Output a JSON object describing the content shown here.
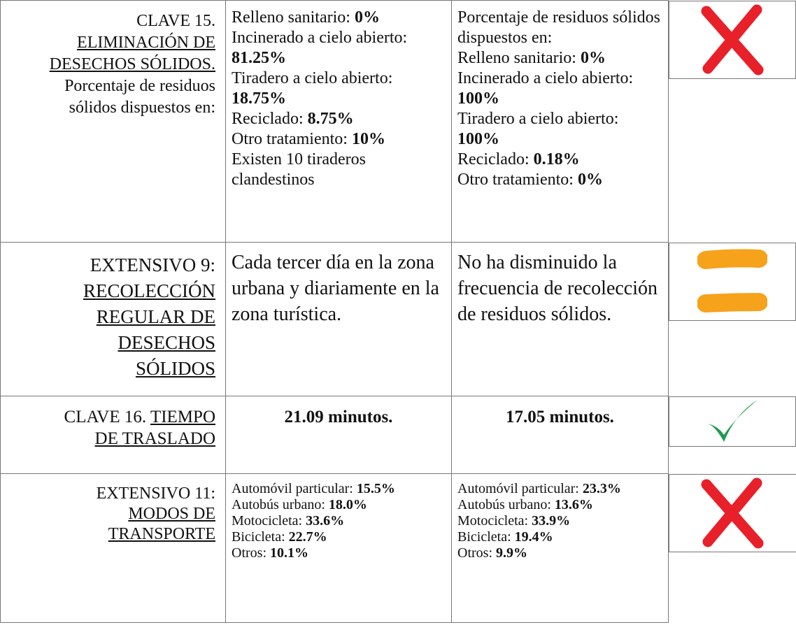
{
  "table": {
    "rows": [
      {
        "indicator": {
          "prefix": "CLAVE 15.",
          "title": "ELIMINACIÓN DE DESECHOS SÓLIDOS.",
          "note": "Porcentaje de residuos sólidos dispuestos en:"
        },
        "before": {
          "items": [
            {
              "label": "Relleno sanitario:",
              "value": "0%"
            },
            {
              "label": "Incinerado a cielo abierto:",
              "value": "81.25%"
            },
            {
              "label": "Tiradero a cielo abierto:",
              "value": "18.75%"
            },
            {
              "label": "Reciclado:",
              "value": "8.75%"
            },
            {
              "label": "Otro tratamiento:",
              "value": "10%"
            }
          ],
          "note": "Existen 10 tiraderos clandestinos"
        },
        "after": {
          "intro": "Porcentaje de residuos sólidos dispuestos en:",
          "items": [
            {
              "label": "Relleno sanitario:",
              "value": "0%"
            },
            {
              "label": "Incinerado a cielo abierto:",
              "value": "100%"
            },
            {
              "label": "Tiradero a cielo abierto:",
              "value": "100%"
            },
            {
              "label": "Reciclado:",
              "value": "0.18%"
            },
            {
              "label": "Otro tratamiento:",
              "value": "0%"
            }
          ]
        }
      },
      {
        "indicator": {
          "prefix": "EXTENSIVO 9:",
          "title": "RECOLECCIÓN REGULAR DE DESECHOS SÓLIDOS"
        },
        "before": {
          "text": "Cada tercer día en la zona urbana y diariamente en la zona turística."
        },
        "after": {
          "text": "No ha disminuido la frecuencia de recolección de residuos sólidos."
        }
      },
      {
        "indicator": {
          "prefix": "CLAVE 16.",
          "title": "TIEMPO DE TRASLADO"
        },
        "before": {
          "text": "21.09 minutos."
        },
        "after": {
          "text": "17.05 minutos."
        }
      },
      {
        "indicator": {
          "prefix": "EXTENSIVO 11:",
          "title": "MODOS DE TRANSPORTE"
        },
        "before": {
          "items": [
            {
              "label": "Automóvil particular:",
              "value": "15.5%"
            },
            {
              "label": "Autobús urbano:",
              "value": "18.0%"
            },
            {
              "label": "Motocicleta:",
              "value": "33.6%"
            },
            {
              "label": "Bicicleta:",
              "value": "22.7%"
            },
            {
              "label": "Otros:",
              "value": "10.1%"
            }
          ]
        },
        "after": {
          "items": [
            {
              "label": "Automóvil particular:",
              "value": "23.3%"
            },
            {
              "label": "Autobús urbano:",
              "value": "13.6%"
            },
            {
              "label": "Motocicleta:",
              "value": "33.9%"
            },
            {
              "label": "Bicicleta:",
              "value": "19.4%"
            },
            {
              "label": "Otros:",
              "value": "9.9%"
            }
          ]
        }
      }
    ]
  }
}
